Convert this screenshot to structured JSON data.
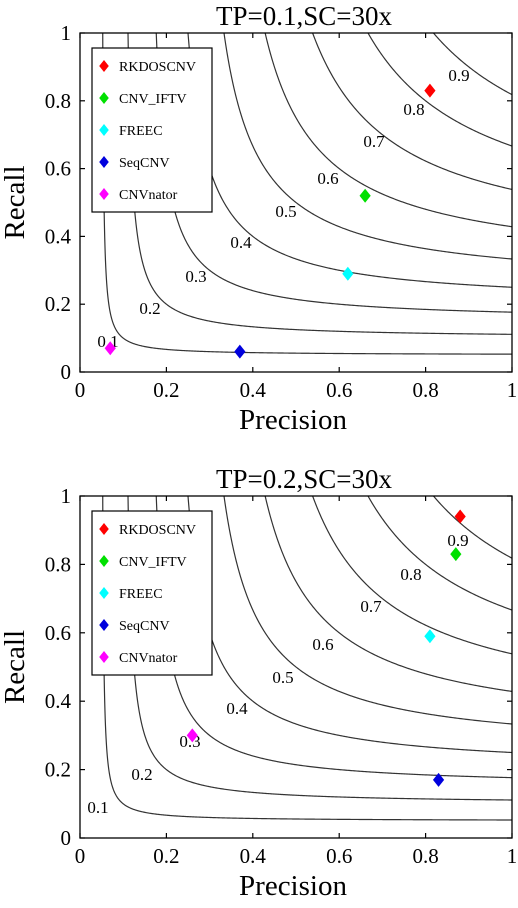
{
  "chart_data": [
    {
      "type": "scatter",
      "title": "TP=0.1,SC=30x",
      "xlabel": "Precision",
      "ylabel": "Recall",
      "xlim": [
        0,
        1
      ],
      "ylim": [
        0,
        1
      ],
      "xticks": [
        "0",
        "0.2",
        "0.4",
        "0.6",
        "0.8",
        "1"
      ],
      "yticks": [
        "0",
        "0.2",
        "0.4",
        "0.6",
        "0.8",
        "1"
      ],
      "grid": false,
      "legend_position": "top-left",
      "contour_levels": [
        "0.1",
        "0.2",
        "0.3",
        "0.4",
        "0.5",
        "0.6",
        "0.7",
        "0.8",
        "0.9"
      ],
      "series": [
        {
          "name": "RKDOSCNV",
          "color": "#ff0000",
          "x": [
            0.81
          ],
          "y": [
            0.83
          ]
        },
        {
          "name": "CNV_IFTV",
          "color": "#00e000",
          "x": [
            0.66
          ],
          "y": [
            0.52
          ]
        },
        {
          "name": "FREEC",
          "color": "#00ffff",
          "x": [
            0.62
          ],
          "y": [
            0.29
          ]
        },
        {
          "name": "SeqCNV",
          "color": "#0000dd",
          "x": [
            0.37
          ],
          "y": [
            0.06
          ]
        },
        {
          "name": "CNVnator",
          "color": "#ff00ff",
          "x": [
            0.07
          ],
          "y": [
            0.07
          ]
        }
      ]
    },
    {
      "type": "scatter",
      "title": "TP=0.2,SC=30x",
      "xlabel": "Precision",
      "ylabel": "Recall",
      "xlim": [
        0,
        1
      ],
      "ylim": [
        0,
        1
      ],
      "xticks": [
        "0",
        "0.2",
        "0.4",
        "0.6",
        "0.8",
        "1"
      ],
      "yticks": [
        "0",
        "0.2",
        "0.4",
        "0.6",
        "0.8",
        "1"
      ],
      "grid": false,
      "legend_position": "top-left",
      "contour_levels": [
        "0.1",
        "0.2",
        "0.3",
        "0.4",
        "0.5",
        "0.6",
        "0.7",
        "0.8",
        "0.9"
      ],
      "series": [
        {
          "name": "RKDOSCNV",
          "color": "#ff0000",
          "x": [
            0.88
          ],
          "y": [
            0.94
          ]
        },
        {
          "name": "CNV_IFTV",
          "color": "#00e000",
          "x": [
            0.87
          ],
          "y": [
            0.83
          ]
        },
        {
          "name": "FREEC",
          "color": "#00ffff",
          "x": [
            0.81
          ],
          "y": [
            0.59
          ]
        },
        {
          "name": "SeqCNV",
          "color": "#0000dd",
          "x": [
            0.83
          ],
          "y": [
            0.17
          ]
        },
        {
          "name": "CNVnator",
          "color": "#ff00ff",
          "x": [
            0.26
          ],
          "y": [
            0.3
          ]
        }
      ]
    }
  ]
}
